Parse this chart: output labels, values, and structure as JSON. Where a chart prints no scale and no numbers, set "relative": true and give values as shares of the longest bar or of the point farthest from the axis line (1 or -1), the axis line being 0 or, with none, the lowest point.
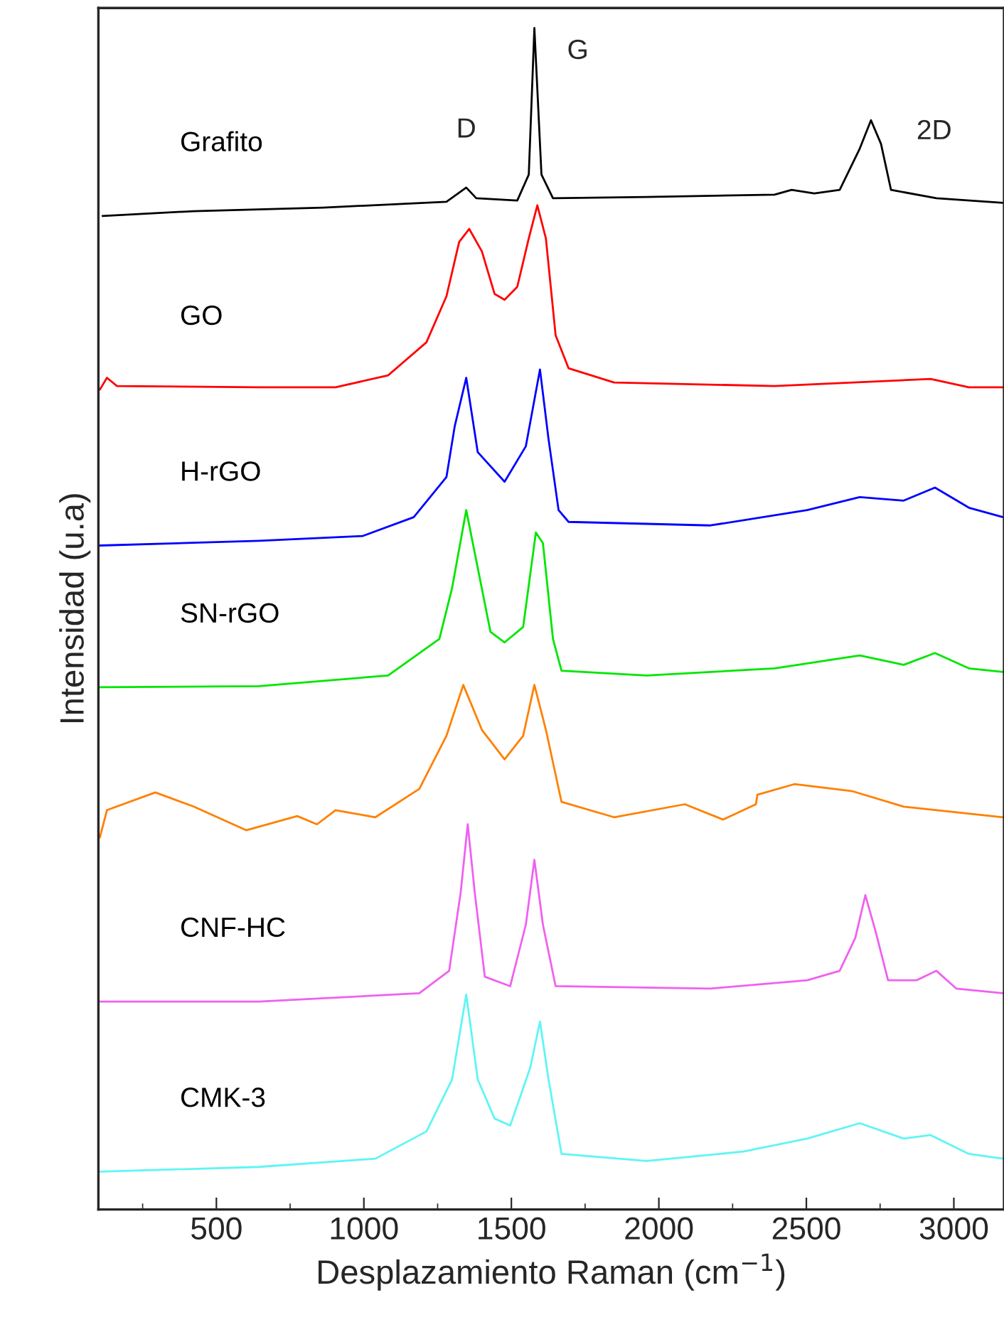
{
  "chart_data": {
    "type": "line",
    "relative": true,
    "xlabel": "Desplazamiento Raman (cm$^{−1}$)",
    "ylabel": "Intensidad (u.a)",
    "xlim": [
      100,
      3170
    ],
    "xticks": [
      500,
      1000,
      1500,
      2000,
      2500,
      3000
    ],
    "tick_labels": "x",
    "grid": false,
    "legend": false,
    "marker": "none",
    "line_style": "solid",
    "annotations": [
      {
        "text": "D",
        "x": 1347,
        "y": 0.865
      },
      {
        "text": "G",
        "x": 1578,
        "y": 1.0
      },
      {
        "text": "2D",
        "x": 2719,
        "y": 0.922
      }
    ],
    "series": [
      {
        "name": "Grafito",
        "color": "#000000",
        "x": [
          114,
          423,
          861,
          1280,
          1347,
          1381,
          1520,
          1559,
          1578,
          1602,
          1641,
          1958,
          2392,
          2450,
          2527,
          2613,
          2681,
          2719,
          2753,
          2787,
          2941,
          3167
        ],
        "values": [
          0.841,
          0.845,
          0.848,
          0.853,
          0.865,
          0.856,
          0.854,
          0.876,
          1.0,
          0.876,
          0.856,
          0.857,
          0.859,
          0.863,
          0.86,
          0.863,
          0.898,
          0.922,
          0.902,
          0.863,
          0.856,
          0.852
        ]
      },
      {
        "name": "GO",
        "color": "#ff0000",
        "x": [
          105,
          129,
          163,
          644,
          904,
          1082,
          1212,
          1280,
          1323,
          1357,
          1400,
          1443,
          1477,
          1520,
          1559,
          1588,
          1617,
          1650,
          1694,
          1848,
          2392,
          2921,
          3051,
          3167
        ],
        "values": [
          0.694,
          0.704,
          0.697,
          0.696,
          0.696,
          0.706,
          0.734,
          0.773,
          0.819,
          0.83,
          0.811,
          0.775,
          0.77,
          0.781,
          0.822,
          0.85,
          0.822,
          0.74,
          0.712,
          0.7,
          0.697,
          0.703,
          0.696,
          0.696
        ]
      },
      {
        "name": "H-rGO",
        "color": "#0000ff",
        "x": [
          105,
          644,
          995,
          1169,
          1280,
          1308,
          1347,
          1386,
          1477,
          1549,
          1597,
          1626,
          1660,
          1694,
          2175,
          2503,
          2681,
          2830,
          2936,
          3051,
          3167
        ],
        "values": [
          0.562,
          0.566,
          0.57,
          0.586,
          0.62,
          0.663,
          0.704,
          0.641,
          0.616,
          0.646,
          0.711,
          0.652,
          0.592,
          0.582,
          0.579,
          0.592,
          0.603,
          0.6,
          0.611,
          0.594,
          0.586
        ]
      },
      {
        "name": "SN-rGO",
        "color": "#00e600",
        "x": [
          105,
          644,
          1082,
          1256,
          1299,
          1347,
          1386,
          1429,
          1477,
          1540,
          1583,
          1607,
          1641,
          1670,
          1958,
          2392,
          2681,
          2830,
          2936,
          3051,
          3167
        ],
        "values": [
          0.442,
          0.443,
          0.452,
          0.483,
          0.526,
          0.592,
          0.543,
          0.489,
          0.48,
          0.493,
          0.573,
          0.564,
          0.483,
          0.456,
          0.452,
          0.458,
          0.469,
          0.461,
          0.471,
          0.458,
          0.455
        ]
      },
      {
        "color": "#ff8000",
        "x": [
          105,
          129,
          293,
          423,
          601,
          774,
          841,
          904,
          1039,
          1188,
          1280,
          1337,
          1400,
          1477,
          1540,
          1578,
          1617,
          1670,
          1848,
          2088,
          2218,
          2329,
          2334,
          2459,
          2657,
          2830,
          3167
        ],
        "values": [
          0.315,
          0.338,
          0.353,
          0.341,
          0.321,
          0.333,
          0.326,
          0.338,
          0.332,
          0.356,
          0.401,
          0.444,
          0.406,
          0.381,
          0.401,
          0.444,
          0.406,
          0.345,
          0.332,
          0.343,
          0.33,
          0.343,
          0.351,
          0.36,
          0.354,
          0.341,
          0.332
        ]
      },
      {
        "name": "CNF-HC",
        "color": "#f060f0",
        "x": [
          105,
          644,
          1188,
          1289,
          1328,
          1352,
          1376,
          1410,
          1496,
          1549,
          1578,
          1607,
          1650,
          2175,
          2503,
          2613,
          2666,
          2700,
          2734,
          2777,
          2873,
          2941,
          3008,
          3167
        ],
        "values": [
          0.176,
          0.176,
          0.183,
          0.202,
          0.268,
          0.326,
          0.268,
          0.197,
          0.189,
          0.241,
          0.296,
          0.241,
          0.189,
          0.187,
          0.194,
          0.202,
          0.23,
          0.266,
          0.236,
          0.194,
          0.194,
          0.202,
          0.187,
          0.183
        ]
      },
      {
        "name": "CMK-3",
        "color": "#5ff5f5",
        "x": [
          105,
          644,
          1039,
          1212,
          1299,
          1347,
          1386,
          1443,
          1496,
          1564,
          1597,
          1626,
          1670,
          1958,
          2286,
          2503,
          2681,
          2830,
          2921,
          3051,
          3167
        ],
        "values": [
          0.032,
          0.036,
          0.043,
          0.066,
          0.11,
          0.182,
          0.11,
          0.077,
          0.071,
          0.12,
          0.159,
          0.11,
          0.047,
          0.041,
          0.049,
          0.06,
          0.073,
          0.06,
          0.063,
          0.047,
          0.043
        ]
      }
    ]
  }
}
